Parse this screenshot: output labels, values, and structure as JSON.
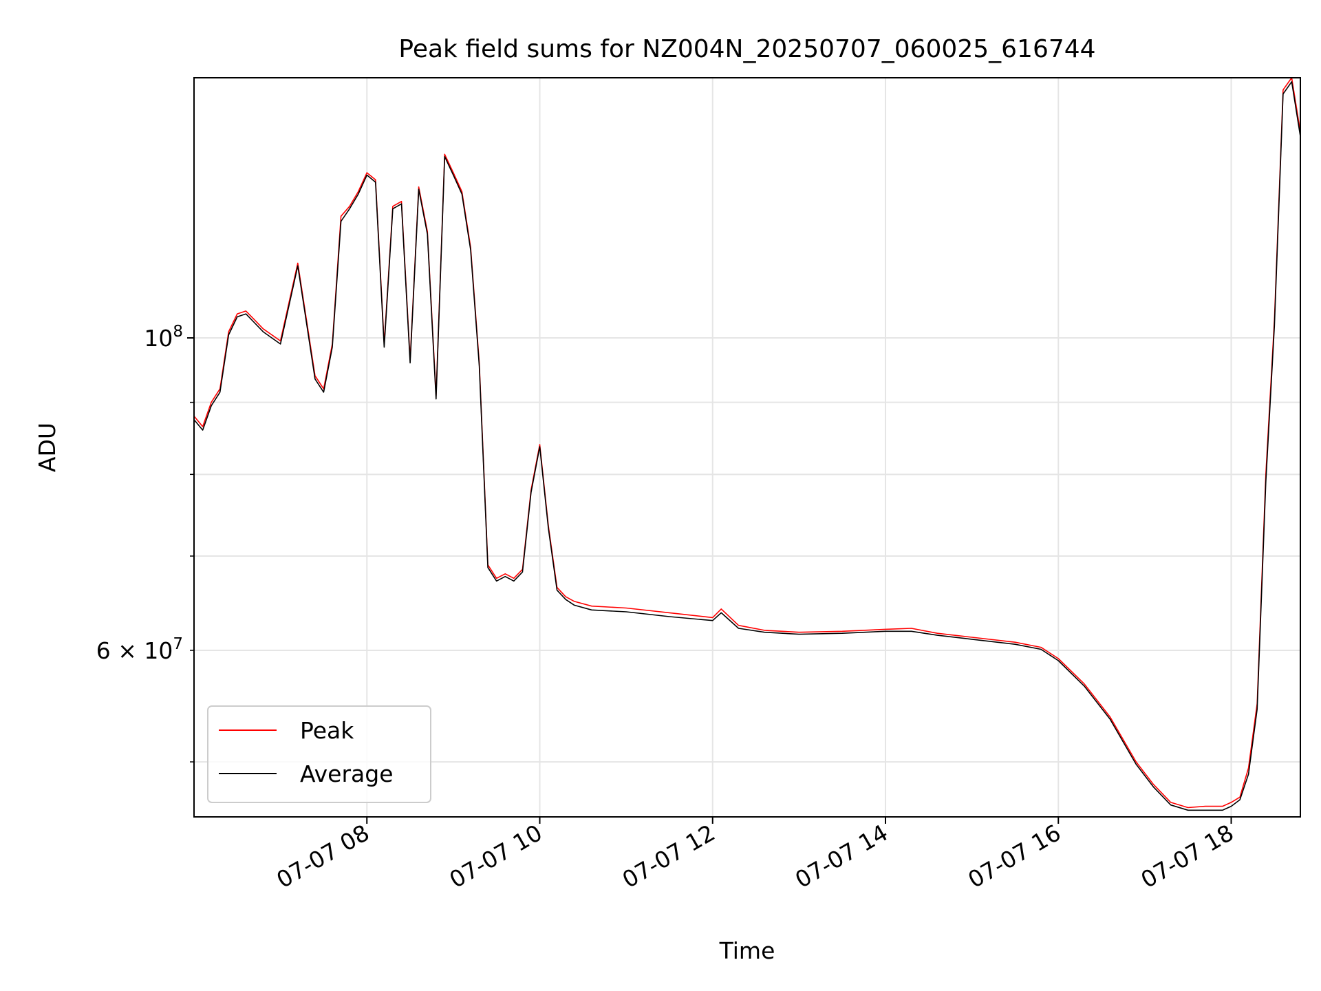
{
  "chart_data": {
    "type": "line",
    "title": "Peak field sums for NZ004N_20250707_060025_616744",
    "xlabel": "Time",
    "ylabel": "ADU",
    "y_scale": "log",
    "x_range": [
      "2025-07-07 06:00",
      "2025-07-07 18:48"
    ],
    "ylim": [
      45700000,
      153000000
    ],
    "x_tick_labels": [
      "07-07 08",
      "07-07 10",
      "07-07 12",
      "07-07 14",
      "07-07 16",
      "07-07 18"
    ],
    "x_tick_values": [
      "2025-07-07 08:00",
      "2025-07-07 10:00",
      "2025-07-07 12:00",
      "2025-07-07 14:00",
      "2025-07-07 16:00",
      "2025-07-07 18:00"
    ],
    "y_major_ticks": [
      {
        "value": 100000000,
        "base": "10",
        "exp": "8"
      }
    ],
    "y_labeled_minor_ticks": [
      {
        "value": 60000000,
        "mantissa": "6 × 10",
        "exp": "7"
      }
    ],
    "y_minor_ticks": [
      50000000,
      60000000,
      70000000,
      80000000,
      90000000
    ],
    "grid": true,
    "legend": {
      "position": "lower-left"
    },
    "colors": {
      "Peak": "#ff0000",
      "Average": "#000000",
      "grid": "#e5e5e5"
    },
    "series": [
      {
        "name": "Peak",
        "x": [
          "2025-07-07 06:00",
          "2025-07-07 06:06",
          "2025-07-07 06:12",
          "2025-07-07 06:18",
          "2025-07-07 06:24",
          "2025-07-07 06:30",
          "2025-07-07 06:36",
          "2025-07-07 06:42",
          "2025-07-07 06:48",
          "2025-07-07 07:00",
          "2025-07-07 07:12",
          "2025-07-07 07:24",
          "2025-07-07 07:30",
          "2025-07-07 07:36",
          "2025-07-07 07:42",
          "2025-07-07 07:48",
          "2025-07-07 07:54",
          "2025-07-07 08:00",
          "2025-07-07 08:06",
          "2025-07-07 08:12",
          "2025-07-07 08:18",
          "2025-07-07 08:24",
          "2025-07-07 08:30",
          "2025-07-07 08:36",
          "2025-07-07 08:42",
          "2025-07-07 08:48",
          "2025-07-07 08:54",
          "2025-07-07 09:00",
          "2025-07-07 09:06",
          "2025-07-07 09:12",
          "2025-07-07 09:18",
          "2025-07-07 09:24",
          "2025-07-07 09:30",
          "2025-07-07 09:36",
          "2025-07-07 09:42",
          "2025-07-07 09:48",
          "2025-07-07 09:54",
          "2025-07-07 10:00",
          "2025-07-07 10:06",
          "2025-07-07 10:12",
          "2025-07-07 10:18",
          "2025-07-07 10:24",
          "2025-07-07 10:36",
          "2025-07-07 11:00",
          "2025-07-07 11:30",
          "2025-07-07 12:00",
          "2025-07-07 12:06",
          "2025-07-07 12:18",
          "2025-07-07 12:36",
          "2025-07-07 13:00",
          "2025-07-07 13:30",
          "2025-07-07 14:00",
          "2025-07-07 14:18",
          "2025-07-07 14:36",
          "2025-07-07 15:00",
          "2025-07-07 15:30",
          "2025-07-07 15:48",
          "2025-07-07 16:00",
          "2025-07-07 16:18",
          "2025-07-07 16:36",
          "2025-07-07 16:54",
          "2025-07-07 17:06",
          "2025-07-07 17:18",
          "2025-07-07 17:30",
          "2025-07-07 17:42",
          "2025-07-07 17:54",
          "2025-07-07 18:00",
          "2025-07-07 18:06",
          "2025-07-07 18:12",
          "2025-07-07 18:18",
          "2025-07-07 18:24",
          "2025-07-07 18:30",
          "2025-07-07 18:36",
          "2025-07-07 18:42",
          "2025-07-07 18:48"
        ],
        "values": [
          88000000,
          86500000,
          90000000,
          92000000,
          101000000,
          104000000,
          104500000,
          103000000,
          101500000,
          99500000,
          113000000,
          94000000,
          92000000,
          99000000,
          122000000,
          124000000,
          127000000,
          131000000,
          129500000,
          99000000,
          124000000,
          125000000,
          96500000,
          128000000,
          119000000,
          91000000,
          135000000,
          131000000,
          127000000,
          116000000,
          96000000,
          69000000,
          67500000,
          68000000,
          67500000,
          68500000,
          78000000,
          84000000,
          73500000,
          66500000,
          65500000,
          65000000,
          64500000,
          64300000,
          63800000,
          63300000,
          64200000,
          62500000,
          62000000,
          61800000,
          61900000,
          62100000,
          62200000,
          61700000,
          61300000,
          60800000,
          60300000,
          59200000,
          56800000,
          53800000,
          50000000,
          48200000,
          46800000,
          46400000,
          46500000,
          46500000,
          46800000,
          47200000,
          49500000,
          55000000,
          80000000,
          103000000,
          150000000,
          153000000,
          140000000
        ]
      },
      {
        "name": "Average",
        "x": [
          "2025-07-07 06:00",
          "2025-07-07 06:06",
          "2025-07-07 06:12",
          "2025-07-07 06:18",
          "2025-07-07 06:24",
          "2025-07-07 06:30",
          "2025-07-07 06:36",
          "2025-07-07 06:42",
          "2025-07-07 06:48",
          "2025-07-07 07:00",
          "2025-07-07 07:12",
          "2025-07-07 07:24",
          "2025-07-07 07:30",
          "2025-07-07 07:36",
          "2025-07-07 07:42",
          "2025-07-07 07:48",
          "2025-07-07 07:54",
          "2025-07-07 08:00",
          "2025-07-07 08:06",
          "2025-07-07 08:12",
          "2025-07-07 08:18",
          "2025-07-07 08:24",
          "2025-07-07 08:30",
          "2025-07-07 08:36",
          "2025-07-07 08:42",
          "2025-07-07 08:48",
          "2025-07-07 08:54",
          "2025-07-07 09:00",
          "2025-07-07 09:06",
          "2025-07-07 09:12",
          "2025-07-07 09:18",
          "2025-07-07 09:24",
          "2025-07-07 09:30",
          "2025-07-07 09:36",
          "2025-07-07 09:42",
          "2025-07-07 09:48",
          "2025-07-07 09:54",
          "2025-07-07 10:00",
          "2025-07-07 10:06",
          "2025-07-07 10:12",
          "2025-07-07 10:18",
          "2025-07-07 10:24",
          "2025-07-07 10:36",
          "2025-07-07 11:00",
          "2025-07-07 11:30",
          "2025-07-07 12:00",
          "2025-07-07 12:06",
          "2025-07-07 12:18",
          "2025-07-07 12:36",
          "2025-07-07 13:00",
          "2025-07-07 13:30",
          "2025-07-07 14:00",
          "2025-07-07 14:18",
          "2025-07-07 14:36",
          "2025-07-07 15:00",
          "2025-07-07 15:30",
          "2025-07-07 15:48",
          "2025-07-07 16:00",
          "2025-07-07 16:18",
          "2025-07-07 16:36",
          "2025-07-07 16:54",
          "2025-07-07 17:06",
          "2025-07-07 17:18",
          "2025-07-07 17:30",
          "2025-07-07 17:42",
          "2025-07-07 17:54",
          "2025-07-07 18:00",
          "2025-07-07 18:06",
          "2025-07-07 18:12",
          "2025-07-07 18:18",
          "2025-07-07 18:24",
          "2025-07-07 18:30",
          "2025-07-07 18:36",
          "2025-07-07 18:42",
          "2025-07-07 18:48"
        ],
        "values": [
          87500000,
          86000000,
          89500000,
          91500000,
          100500000,
          103500000,
          104000000,
          102500000,
          101000000,
          99000000,
          112500000,
          93500000,
          91500000,
          98500000,
          121000000,
          123500000,
          126500000,
          130500000,
          129000000,
          98500000,
          123500000,
          124500000,
          96000000,
          127500000,
          118500000,
          90500000,
          134500000,
          130500000,
          126500000,
          115500000,
          95500000,
          68700000,
          67200000,
          67700000,
          67200000,
          68200000,
          77700000,
          83700000,
          73200000,
          66200000,
          65200000,
          64600000,
          64100000,
          63900000,
          63400000,
          63000000,
          63800000,
          62200000,
          61800000,
          61600000,
          61700000,
          61900000,
          61900000,
          61500000,
          61100000,
          60600000,
          60100000,
          59000000,
          56600000,
          53600000,
          49800000,
          48000000,
          46600000,
          46200000,
          46200000,
          46200000,
          46500000,
          47000000,
          49000000,
          54500000,
          79000000,
          102000000,
          149000000,
          152000000,
          139000000
        ]
      }
    ]
  }
}
